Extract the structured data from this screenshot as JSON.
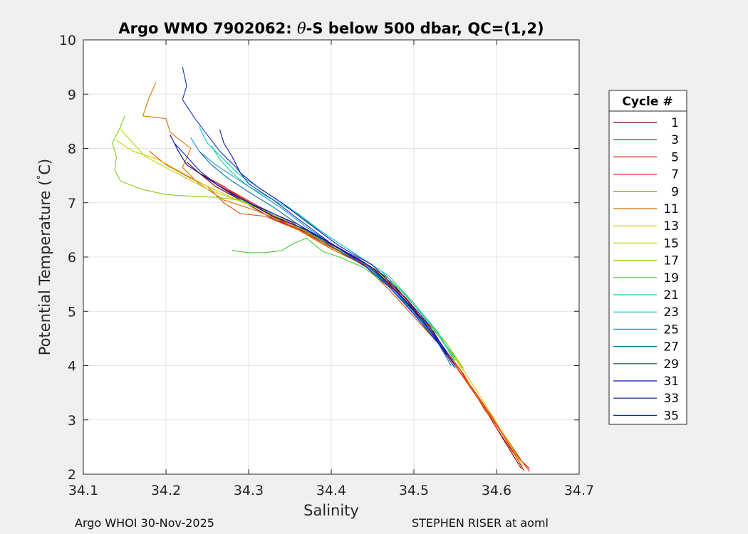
{
  "chart_data": {
    "type": "line",
    "title_prefix": "Argo WMO 7902062: ",
    "title_symbol": "θ",
    "title_suffix": "-S below 500 dbar,  QC=(1,2)",
    "xlabel": "Salinity",
    "ylabel_main": "Potential Temperature (",
    "ylabel_deg": "°",
    "ylabel_unit": "C)",
    "xlim": [
      34.1,
      34.7
    ],
    "ylim": [
      2,
      10
    ],
    "xticks": [
      "34.1",
      "34.2",
      "34.3",
      "34.4",
      "34.5",
      "34.6",
      "34.7"
    ],
    "yticks": [
      "2",
      "3",
      "4",
      "5",
      "6",
      "7",
      "8",
      "9",
      "10"
    ],
    "grid": true,
    "legend_title": "Cycle #",
    "legend_placement": "outside-right",
    "series": [
      {
        "name": "1",
        "color": "#7f0000",
        "points": [
          [
            34.225,
            7.75
          ],
          [
            34.24,
            7.55
          ],
          [
            34.26,
            7.3
          ],
          [
            34.29,
            7.05
          ],
          [
            34.33,
            6.7
          ],
          [
            34.37,
            6.45
          ],
          [
            34.41,
            6.1
          ],
          [
            34.45,
            5.75
          ],
          [
            34.49,
            5.2
          ],
          [
            34.52,
            4.7
          ],
          [
            34.545,
            4.1
          ],
          [
            34.565,
            3.7
          ],
          [
            34.59,
            3.1
          ],
          [
            34.61,
            2.6
          ],
          [
            34.63,
            2.1
          ]
        ]
      },
      {
        "name": "3",
        "color": "#aa0000",
        "points": [
          [
            34.235,
            7.6
          ],
          [
            34.26,
            7.35
          ],
          [
            34.29,
            7.1
          ],
          [
            34.33,
            6.75
          ],
          [
            34.37,
            6.45
          ],
          [
            34.41,
            6.12
          ],
          [
            34.45,
            5.78
          ],
          [
            34.49,
            5.25
          ],
          [
            34.52,
            4.72
          ],
          [
            34.545,
            4.1
          ],
          [
            34.57,
            3.6
          ],
          [
            34.595,
            3.05
          ],
          [
            34.615,
            2.55
          ],
          [
            34.633,
            2.07
          ]
        ]
      },
      {
        "name": "5",
        "color": "#cc1010",
        "points": [
          [
            34.245,
            7.5
          ],
          [
            34.275,
            7.25
          ],
          [
            34.31,
            6.95
          ],
          [
            34.35,
            6.65
          ],
          [
            34.39,
            6.3
          ],
          [
            34.43,
            6.0
          ],
          [
            34.47,
            5.6
          ],
          [
            34.5,
            5.05
          ],
          [
            34.53,
            4.45
          ],
          [
            34.555,
            3.95
          ],
          [
            34.58,
            3.35
          ],
          [
            34.6,
            2.85
          ],
          [
            34.62,
            2.4
          ],
          [
            34.64,
            2.1
          ]
        ]
      },
      {
        "name": "7",
        "color": "#e02020",
        "points": [
          [
            34.24,
            7.55
          ],
          [
            34.27,
            7.3
          ],
          [
            34.3,
            7.0
          ],
          [
            34.34,
            6.65
          ],
          [
            34.38,
            6.35
          ],
          [
            34.42,
            6.05
          ],
          [
            34.46,
            5.7
          ],
          [
            34.49,
            5.2
          ],
          [
            34.52,
            4.6
          ],
          [
            34.55,
            4.0
          ],
          [
            34.575,
            3.45
          ],
          [
            34.6,
            2.9
          ],
          [
            34.625,
            2.35
          ],
          [
            34.64,
            2.05
          ]
        ]
      },
      {
        "name": "9",
        "color": "#e65000",
        "points": [
          [
            34.18,
            7.95
          ],
          [
            34.2,
            7.7
          ],
          [
            34.23,
            7.45
          ],
          [
            34.25,
            7.3
          ],
          [
            34.27,
            7.0
          ],
          [
            34.29,
            6.8
          ],
          [
            34.32,
            6.75
          ],
          [
            34.36,
            6.5
          ],
          [
            34.4,
            6.15
          ],
          [
            34.44,
            5.85
          ],
          [
            34.47,
            5.4
          ],
          [
            34.5,
            4.9
          ],
          [
            34.53,
            4.4
          ],
          [
            34.56,
            3.85
          ],
          [
            34.585,
            3.2
          ],
          [
            34.61,
            2.7
          ],
          [
            34.628,
            2.2
          ]
        ]
      },
      {
        "name": "11",
        "color": "#e07000",
        "points": [
          [
            34.188,
            9.22
          ],
          [
            34.18,
            8.95
          ],
          [
            34.172,
            8.6
          ],
          [
            34.2,
            8.55
          ],
          [
            34.205,
            8.3
          ],
          [
            34.23,
            8.0
          ],
          [
            34.22,
            7.65
          ],
          [
            34.24,
            7.35
          ],
          [
            34.27,
            7.05
          ],
          [
            34.31,
            6.85
          ],
          [
            34.35,
            6.6
          ],
          [
            34.39,
            6.25
          ],
          [
            34.43,
            5.95
          ],
          [
            34.47,
            5.55
          ],
          [
            34.5,
            5.0
          ],
          [
            34.53,
            4.45
          ],
          [
            34.56,
            3.8
          ],
          [
            34.59,
            3.15
          ],
          [
            34.615,
            2.6
          ],
          [
            34.636,
            2.12
          ]
        ]
      },
      {
        "name": "13",
        "color": "#d4c800",
        "points": [
          [
            34.14,
            8.15
          ],
          [
            34.16,
            7.95
          ],
          [
            34.19,
            7.8
          ],
          [
            34.22,
            7.55
          ],
          [
            34.25,
            7.3
          ],
          [
            34.28,
            7.1
          ],
          [
            34.32,
            6.85
          ],
          [
            34.36,
            6.55
          ],
          [
            34.4,
            6.2
          ],
          [
            34.44,
            5.9
          ],
          [
            34.48,
            5.45
          ],
          [
            34.51,
            4.95
          ],
          [
            34.54,
            4.4
          ],
          [
            34.565,
            3.8
          ],
          [
            34.59,
            3.2
          ],
          [
            34.612,
            2.65
          ],
          [
            34.632,
            2.15
          ]
        ]
      },
      {
        "name": "15",
        "color": "#b8d800",
        "points": [
          [
            34.145,
            8.35
          ],
          [
            34.16,
            8.1
          ],
          [
            34.175,
            7.85
          ],
          [
            34.2,
            7.65
          ],
          [
            34.225,
            7.45
          ],
          [
            34.25,
            7.25
          ],
          [
            34.28,
            7.08
          ],
          [
            34.32,
            6.85
          ],
          [
            34.36,
            6.55
          ],
          [
            34.4,
            6.2
          ],
          [
            34.44,
            5.88
          ],
          [
            34.48,
            5.45
          ],
          [
            34.51,
            4.95
          ],
          [
            34.54,
            4.35
          ],
          [
            34.56,
            3.9
          ]
        ]
      },
      {
        "name": "17",
        "color": "#80d010",
        "points": [
          [
            34.15,
            8.6
          ],
          [
            34.145,
            8.4
          ],
          [
            34.135,
            8.1
          ],
          [
            34.14,
            7.85
          ],
          [
            34.138,
            7.6
          ],
          [
            34.145,
            7.4
          ],
          [
            34.17,
            7.25
          ],
          [
            34.2,
            7.15
          ],
          [
            34.23,
            7.12
          ],
          [
            34.26,
            7.1
          ],
          [
            34.29,
            7.05
          ],
          [
            34.32,
            6.85
          ],
          [
            34.36,
            6.55
          ],
          [
            34.4,
            6.2
          ],
          [
            34.44,
            5.9
          ],
          [
            34.48,
            5.45
          ],
          [
            34.51,
            4.95
          ],
          [
            34.54,
            4.4
          ],
          [
            34.56,
            3.95
          ]
        ]
      },
      {
        "name": "19",
        "color": "#40d030",
        "points": [
          [
            34.28,
            6.12
          ],
          [
            34.3,
            6.08
          ],
          [
            34.32,
            6.08
          ],
          [
            34.34,
            6.12
          ],
          [
            34.355,
            6.25
          ],
          [
            34.37,
            6.35
          ],
          [
            34.39,
            6.1
          ],
          [
            34.41,
            6.0
          ],
          [
            34.44,
            5.8
          ],
          [
            34.47,
            5.45
          ],
          [
            34.5,
            5.0
          ],
          [
            34.53,
            4.55
          ],
          [
            34.55,
            4.1
          ]
        ]
      },
      {
        "name": "21",
        "color": "#20d090",
        "points": [
          [
            34.255,
            8.05
          ],
          [
            34.265,
            7.8
          ],
          [
            34.28,
            7.55
          ],
          [
            34.3,
            7.3
          ],
          [
            34.33,
            7.05
          ],
          [
            34.36,
            6.8
          ],
          [
            34.39,
            6.45
          ],
          [
            34.43,
            6.05
          ],
          [
            34.47,
            5.65
          ],
          [
            34.5,
            5.15
          ],
          [
            34.53,
            4.6
          ],
          [
            34.55,
            4.05
          ]
        ]
      },
      {
        "name": "23",
        "color": "#10c8c8",
        "points": [
          [
            34.24,
            8.4
          ],
          [
            34.25,
            8.1
          ],
          [
            34.27,
            7.8
          ],
          [
            34.29,
            7.5
          ],
          [
            34.32,
            7.2
          ],
          [
            34.35,
            6.9
          ],
          [
            34.38,
            6.55
          ],
          [
            34.42,
            6.15
          ],
          [
            34.46,
            5.75
          ],
          [
            34.49,
            5.3
          ],
          [
            34.52,
            4.75
          ],
          [
            34.55,
            4.15
          ]
        ]
      },
      {
        "name": "25",
        "color": "#10a0d0",
        "points": [
          [
            34.23,
            8.2
          ],
          [
            34.24,
            7.95
          ],
          [
            34.26,
            7.7
          ],
          [
            34.285,
            7.45
          ],
          [
            34.31,
            7.2
          ],
          [
            34.34,
            6.9
          ],
          [
            34.37,
            6.55
          ],
          [
            34.41,
            6.15
          ],
          [
            34.45,
            5.75
          ],
          [
            34.48,
            5.3
          ],
          [
            34.51,
            4.8
          ],
          [
            34.54,
            4.2
          ]
        ]
      },
      {
        "name": "27",
        "color": "#1070a0",
        "points": [
          [
            34.24,
            7.95
          ],
          [
            34.255,
            7.7
          ],
          [
            34.275,
            7.45
          ],
          [
            34.3,
            7.2
          ],
          [
            34.33,
            6.92
          ],
          [
            34.36,
            6.6
          ],
          [
            34.4,
            6.2
          ],
          [
            34.44,
            5.85
          ],
          [
            34.47,
            5.45
          ],
          [
            34.5,
            4.95
          ],
          [
            34.53,
            4.4
          ],
          [
            34.545,
            4.0
          ]
        ]
      },
      {
        "name": "29",
        "color": "#1030c8",
        "points": [
          [
            34.22,
            9.5
          ],
          [
            34.225,
            9.15
          ],
          [
            34.22,
            8.9
          ],
          [
            34.235,
            8.55
          ],
          [
            34.25,
            8.25
          ],
          [
            34.265,
            7.95
          ],
          [
            34.285,
            7.65
          ],
          [
            34.3,
            7.35
          ],
          [
            34.33,
            7.05
          ],
          [
            34.36,
            6.7
          ],
          [
            34.4,
            6.25
          ],
          [
            34.44,
            5.85
          ],
          [
            34.47,
            5.45
          ],
          [
            34.5,
            4.95
          ],
          [
            34.53,
            4.4
          ],
          [
            34.55,
            3.95
          ]
        ]
      },
      {
        "name": "31",
        "color": "#1010b0",
        "points": [
          [
            34.265,
            8.35
          ],
          [
            34.27,
            8.1
          ],
          [
            34.28,
            7.85
          ],
          [
            34.29,
            7.55
          ],
          [
            34.31,
            7.3
          ],
          [
            34.34,
            7.0
          ],
          [
            34.37,
            6.65
          ],
          [
            34.41,
            6.2
          ],
          [
            34.45,
            5.85
          ],
          [
            34.48,
            5.4
          ],
          [
            34.51,
            4.9
          ],
          [
            34.54,
            4.25
          ]
        ]
      },
      {
        "name": "33",
        "color": "#0a0a80",
        "points": [
          [
            34.205,
            8.25
          ],
          [
            34.215,
            7.95
          ],
          [
            34.225,
            7.7
          ],
          [
            34.245,
            7.5
          ],
          [
            34.27,
            7.25
          ],
          [
            34.3,
            7.0
          ],
          [
            34.33,
            6.75
          ],
          [
            34.37,
            6.5
          ],
          [
            34.41,
            6.15
          ],
          [
            34.45,
            5.8
          ],
          [
            34.48,
            5.35
          ],
          [
            34.51,
            4.85
          ],
          [
            34.54,
            4.2
          ]
        ]
      },
      {
        "name": "35",
        "color": "#0020e0",
        "points": [
          [
            34.21,
            8.1
          ],
          [
            34.225,
            7.85
          ],
          [
            34.24,
            7.6
          ],
          [
            34.26,
            7.35
          ],
          [
            34.28,
            7.15
          ],
          [
            34.3,
            7.0
          ],
          [
            34.33,
            6.8
          ],
          [
            34.36,
            6.6
          ],
          [
            34.4,
            6.25
          ],
          [
            34.44,
            5.9
          ],
          [
            34.47,
            5.5
          ],
          [
            34.5,
            5.0
          ],
          [
            34.53,
            4.45
          ],
          [
            34.55,
            4.0
          ]
        ]
      }
    ]
  },
  "footer": {
    "left": "Argo WHOI 30-Nov-2025",
    "right": "STEPHEN RISER at aoml"
  }
}
